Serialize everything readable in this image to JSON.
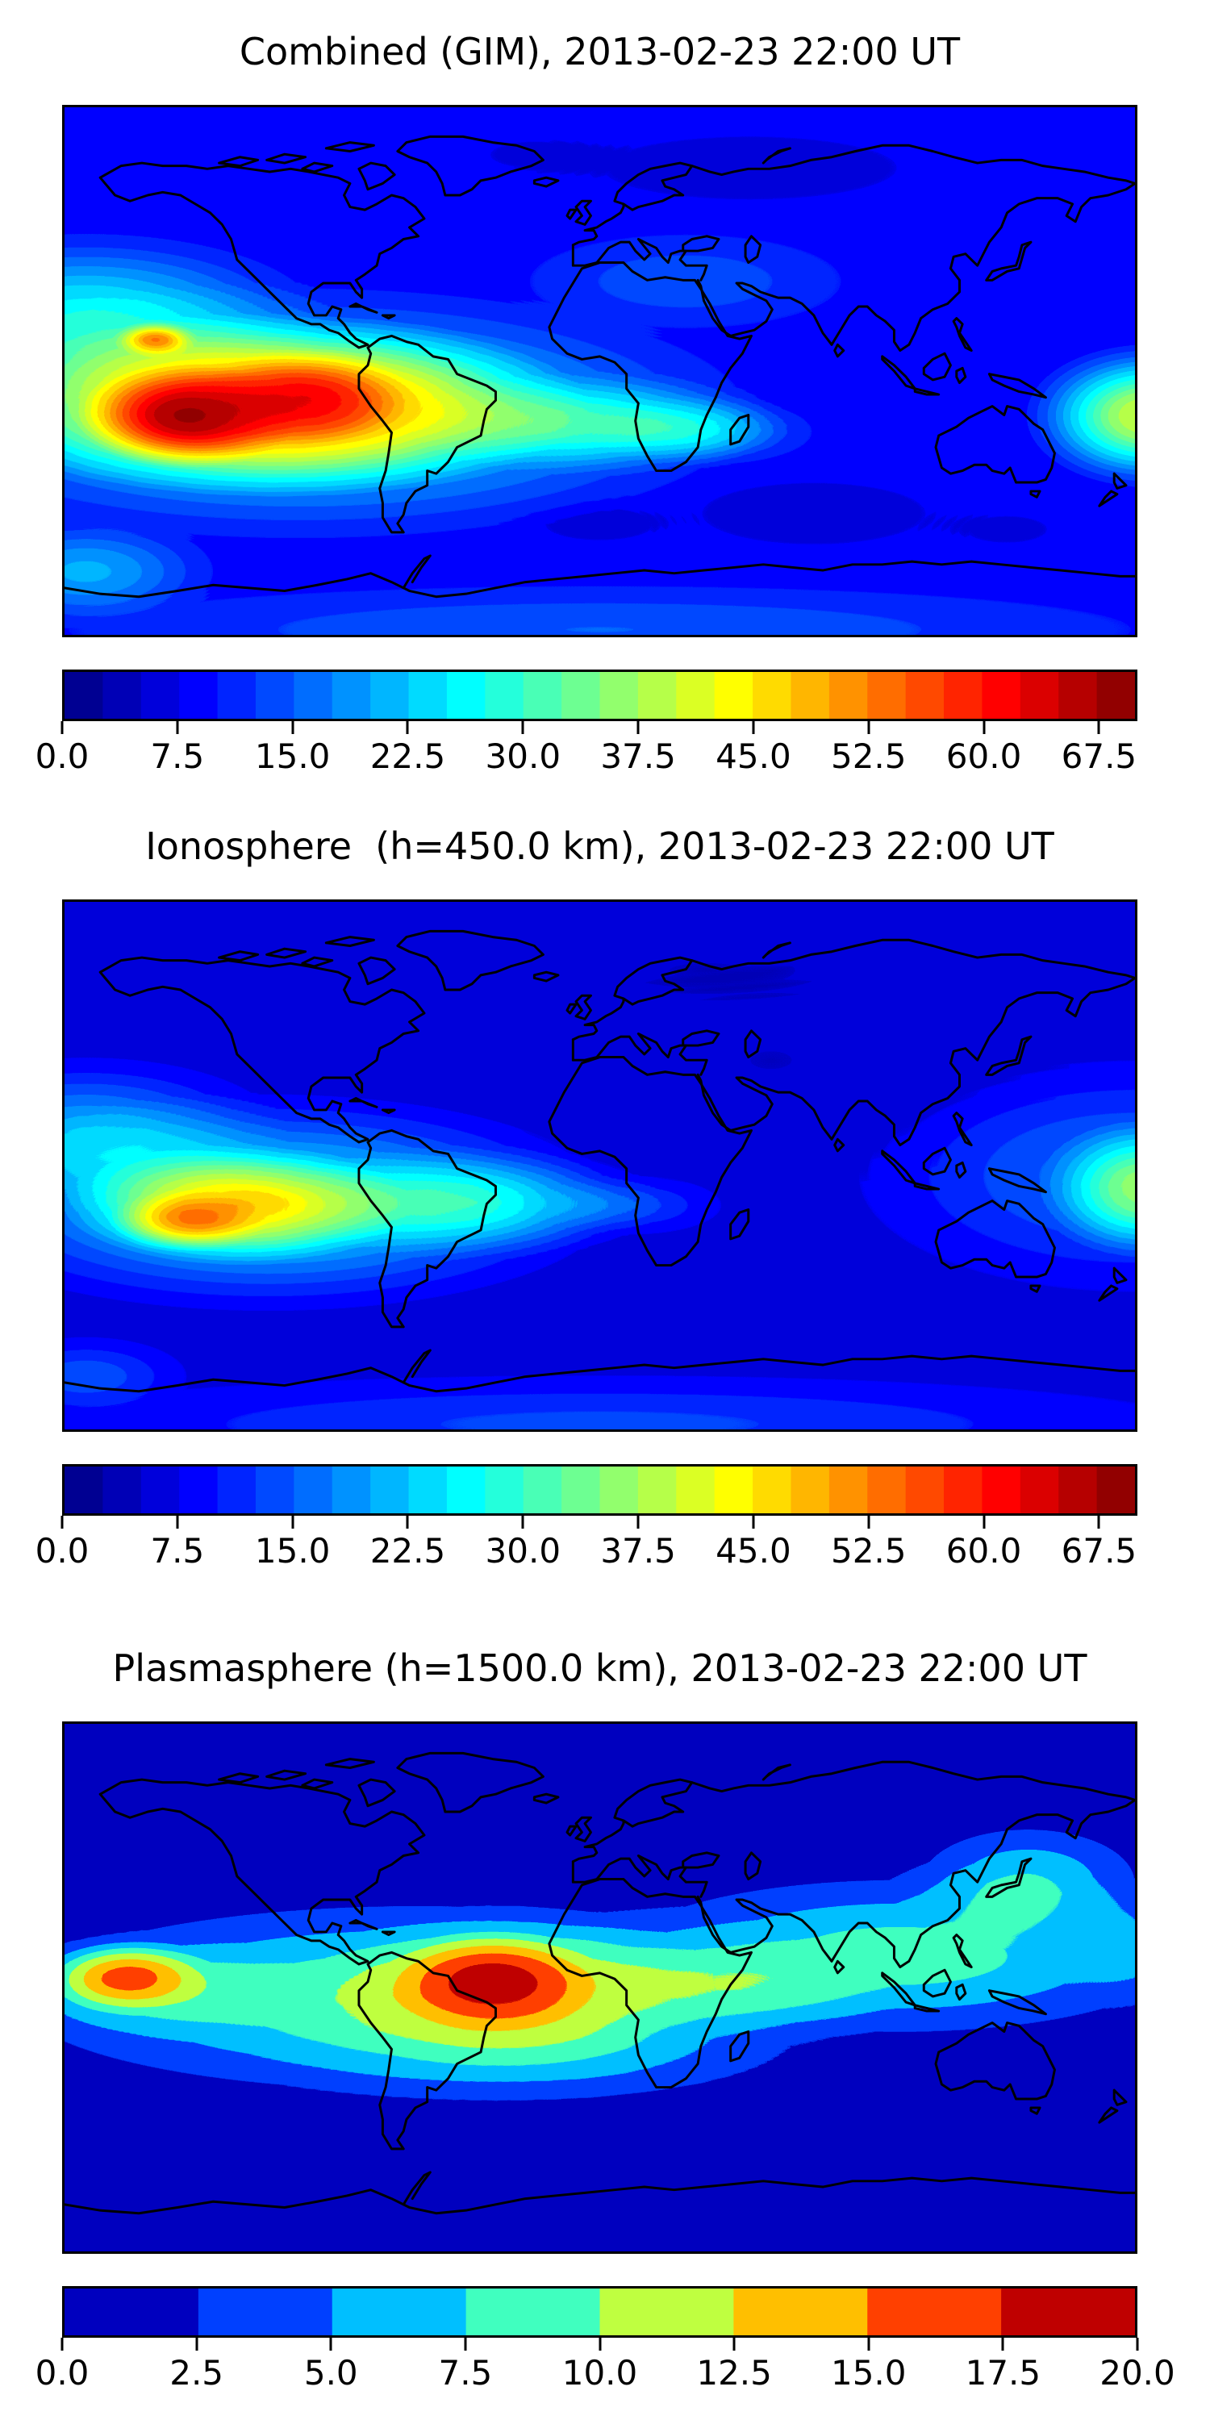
{
  "figure": {
    "type": "stacked-geophysical-maps",
    "background_color": "#ffffff",
    "coastline_color": "#000000",
    "accent_colormap": "jet"
  },
  "chart_data": [
    {
      "type": "heatmap",
      "title": "Combined (GIM), 2013-02-23 22:00 UT",
      "colormap": "jet",
      "vmin": 0.0,
      "vmax": 70.0,
      "n_levels": 28,
      "colorbar_ticks": [
        0.0,
        7.5,
        15.0,
        22.5,
        30.0,
        37.5,
        45.0,
        52.5,
        60.0,
        67.5
      ],
      "colorbar_tick_labels": [
        "0.0",
        "7.5",
        "15.0",
        "22.5",
        "30.0",
        "37.5",
        "45.0",
        "52.5",
        "60.0",
        "67.5"
      ],
      "projection": "equirectangular, lon -180..180, lat 90..-90",
      "grid": false,
      "legend": "horizontal colorbar below map",
      "features": [
        {
          "name": "equatorial-anomaly-peak",
          "lon": -139,
          "lat": -16,
          "value": 68
        },
        {
          "name": "secondary-maximum",
          "lon": -99,
          "lat": -9,
          "value": 59
        },
        {
          "name": "small-local-spot-north-of-peak",
          "lon": -149,
          "lat": 11,
          "value": 53
        },
        {
          "name": "atlantic-tongue",
          "lon": 0,
          "lat": -18,
          "value": 30
        },
        {
          "name": "east-edge-enhancement",
          "lon": 180,
          "lat": -15,
          "value": 44
        },
        {
          "name": "siberia-minimum",
          "lon": 50,
          "lat": 69,
          "value": 5
        },
        {
          "name": "south-indian-ocean-minimum",
          "lon": 72,
          "lat": -49,
          "value": 5
        },
        {
          "name": "background-mid-north",
          "lon": 90,
          "lat": 40,
          "value": 10
        }
      ],
      "field": {
        "base": 0.13,
        "blobs": [
          {
            "cx": 0.64,
            "cy": 0.115,
            "rx": 0.23,
            "ry": 0.1,
            "peak": 0.38,
            "dark": true
          },
          {
            "cx": 0.44,
            "cy": 0.09,
            "rx": 0.1,
            "ry": 0.06,
            "peak": 0.25,
            "dark": true
          },
          {
            "cx": 0.7,
            "cy": 0.77,
            "rx": 0.17,
            "ry": 0.095,
            "peak": 0.4,
            "dark": true
          },
          {
            "cx": 0.5,
            "cy": 0.79,
            "rx": 0.1,
            "ry": 0.06,
            "peak": 0.3,
            "dark": true
          },
          {
            "cx": 0.88,
            "cy": 0.8,
            "rx": 0.09,
            "ry": 0.06,
            "peak": 0.25,
            "dark": true
          },
          {
            "cx": 0.22,
            "cy": 0.58,
            "rx": 0.44,
            "ry": 0.25,
            "peak": 0.33
          },
          {
            "cx": 0.19,
            "cy": 0.565,
            "rx": 0.3,
            "ry": 0.175,
            "peak": 0.72
          },
          {
            "cx": 0.115,
            "cy": 0.585,
            "rx": 0.105,
            "ry": 0.1,
            "peak": 0.93
          },
          {
            "cx": 0.225,
            "cy": 0.55,
            "rx": 0.1,
            "ry": 0.095,
            "peak": 0.5
          },
          {
            "cx": 0.5,
            "cy": 0.6,
            "rx": 0.18,
            "ry": 0.1,
            "peak": 0.28
          },
          {
            "cx": 0.6,
            "cy": 0.615,
            "rx": 0.11,
            "ry": 0.07,
            "peak": 0.16
          },
          {
            "cx": 1.015,
            "cy": 0.585,
            "rx": 0.12,
            "ry": 0.14,
            "peak": 0.55
          },
          {
            "cx": 0.02,
            "cy": 0.4,
            "rx": 0.23,
            "ry": 0.17,
            "peak": 0.3
          },
          {
            "cx": 0.085,
            "cy": 0.44,
            "rx": 0.04,
            "ry": 0.035,
            "peak": 0.55
          },
          {
            "cx": 0.02,
            "cy": 0.88,
            "rx": 0.13,
            "ry": 0.11,
            "peak": 0.2
          },
          {
            "cx": 0.58,
            "cy": 0.33,
            "rx": 0.18,
            "ry": 0.11,
            "peak": 0.09
          },
          {
            "cx": 0.5,
            "cy": 0.99,
            "rx": 0.6,
            "ry": 0.1,
            "peak": 0.1
          }
        ]
      }
    },
    {
      "type": "heatmap",
      "title": "Ionosphere  (h=450.0 km), 2013-02-23 22:00 UT",
      "colormap": "jet",
      "vmin": 0.0,
      "vmax": 70.0,
      "n_levels": 28,
      "colorbar_ticks": [
        0.0,
        7.5,
        15.0,
        22.5,
        30.0,
        37.5,
        45.0,
        52.5,
        60.0,
        67.5
      ],
      "colorbar_tick_labels": [
        "0.0",
        "7.5",
        "15.0",
        "22.5",
        "30.0",
        "37.5",
        "45.0",
        "52.5",
        "60.0",
        "67.5"
      ],
      "projection": "equirectangular, lon -180..180, lat 90..-90",
      "grid": false,
      "legend": "horizontal colorbar below map",
      "features": [
        {
          "name": "ionosphere-anomaly-peak",
          "lon": -139,
          "lat": -20,
          "value": 49
        },
        {
          "name": "yellow-plateau",
          "lon": -122,
          "lat": -13,
          "value": 43
        },
        {
          "name": "south-america-tongue",
          "lon": -43,
          "lat": -13,
          "value": 33
        },
        {
          "name": "east-edge-enhancement",
          "lon": 180,
          "lat": -8,
          "value": 38
        },
        {
          "name": "asia-minimum",
          "lon": 60,
          "lat": 27,
          "value": 4
        },
        {
          "name": "siberia-minimum",
          "lon": 70,
          "lat": 65,
          "value": 4
        },
        {
          "name": "south-indian-ocean-minimum",
          "lon": 18,
          "lat": -57,
          "value": 4
        }
      ],
      "field": {
        "base": 0.1,
        "blobs": [
          {
            "cx": 0.66,
            "cy": 0.3,
            "rx": 0.3,
            "ry": 0.26,
            "peak": 0.3,
            "dark": true
          },
          {
            "cx": 0.6,
            "cy": 0.13,
            "rx": 0.25,
            "ry": 0.1,
            "peak": 0.25,
            "dark": true
          },
          {
            "cx": 0.55,
            "cy": 0.8,
            "rx": 0.25,
            "ry": 0.1,
            "peak": 0.28,
            "dark": true
          },
          {
            "cx": 0.25,
            "cy": 0.1,
            "rx": 0.12,
            "ry": 0.07,
            "peak": 0.18,
            "dark": true
          },
          {
            "cx": 0.19,
            "cy": 0.57,
            "rx": 0.33,
            "ry": 0.21,
            "peak": 0.33
          },
          {
            "cx": 0.16,
            "cy": 0.575,
            "rx": 0.165,
            "ry": 0.115,
            "peak": 0.5
          },
          {
            "cx": 0.115,
            "cy": 0.605,
            "rx": 0.075,
            "ry": 0.06,
            "peak": 0.45
          },
          {
            "cx": 0.38,
            "cy": 0.57,
            "rx": 0.18,
            "ry": 0.11,
            "peak": 0.26
          },
          {
            "cx": 0.53,
            "cy": 0.575,
            "rx": 0.09,
            "ry": 0.06,
            "peak": 0.1
          },
          {
            "cx": 1.01,
            "cy": 0.545,
            "rx": 0.1,
            "ry": 0.14,
            "peak": 0.4
          },
          {
            "cx": 1.0,
            "cy": 0.52,
            "rx": 0.27,
            "ry": 0.23,
            "peak": 0.16
          },
          {
            "cx": 0.02,
            "cy": 0.44,
            "rx": 0.19,
            "ry": 0.15,
            "peak": 0.22
          },
          {
            "cx": 0.5,
            "cy": 0.99,
            "rx": 0.6,
            "ry": 0.1,
            "peak": 0.1
          },
          {
            "cx": 0.02,
            "cy": 0.9,
            "rx": 0.1,
            "ry": 0.08,
            "peak": 0.12
          }
        ]
      }
    },
    {
      "type": "heatmap",
      "title": "Plasmasphere (h=1500.0 km), 2013-02-23 22:00 UT",
      "colormap": "jet",
      "vmin": 0.0,
      "vmax": 20.0,
      "n_levels": 8,
      "colorbar_ticks": [
        0.0,
        2.5,
        5.0,
        7.5,
        10.0,
        12.5,
        15.0,
        17.5,
        20.0
      ],
      "colorbar_tick_labels": [
        "0.0",
        "2.5",
        "5.0",
        "7.5",
        "10.0",
        "12.5",
        "15.0",
        "17.5",
        "20.0"
      ],
      "projection": "equirectangular, lon -180..180, lat 90..-90",
      "grid": false,
      "legend": "horizontal colorbar below map",
      "features": [
        {
          "name": "plasmasphere-peak-south-america",
          "lon": -36,
          "lat": -2,
          "value": 19
        },
        {
          "name": "secondary-peak-pacific",
          "lon": -159,
          "lat": 2,
          "value": 16.5
        },
        {
          "name": "africa-belt-enhancement",
          "lon": 43,
          "lat": 0,
          "value": 11
        },
        {
          "name": "equatorial-belt",
          "lon": 0,
          "lat": 0,
          "value": 9
        },
        {
          "name": "background-high-latitude",
          "lon": 0,
          "lat": 60,
          "value": 1.5
        }
      ],
      "field": {
        "base": 0.05,
        "blobs": [
          {
            "cx": 0.33,
            "cy": 0.52,
            "rx": 0.45,
            "ry": 0.21,
            "peak": 0.5
          },
          {
            "cx": 0.78,
            "cy": 0.44,
            "rx": 0.33,
            "ry": 0.18,
            "peak": 0.42
          },
          {
            "cx": 0.62,
            "cy": 0.5,
            "rx": 0.16,
            "ry": 0.1,
            "peak": 0.22
          },
          {
            "cx": 0.42,
            "cy": 0.5,
            "rx": 0.19,
            "ry": 0.16,
            "peak": 0.42
          },
          {
            "cx": 0.4,
            "cy": 0.49,
            "rx": 0.105,
            "ry": 0.1,
            "peak": 0.92
          },
          {
            "cx": 0.058,
            "cy": 0.48,
            "rx": 0.085,
            "ry": 0.075,
            "peak": 0.72
          },
          {
            "cx": 0.07,
            "cy": 0.5,
            "rx": 0.16,
            "ry": 0.11,
            "peak": 0.26
          },
          {
            "cx": 0.9,
            "cy": 0.3,
            "rx": 0.13,
            "ry": 0.13,
            "peak": 0.35
          },
          {
            "cx": 0.45,
            "cy": 0.63,
            "rx": 0.28,
            "ry": 0.12,
            "peak": 0.18
          },
          {
            "cx": 1.0,
            "cy": 0.42,
            "rx": 0.08,
            "ry": 0.13,
            "peak": 0.16
          }
        ]
      }
    }
  ]
}
